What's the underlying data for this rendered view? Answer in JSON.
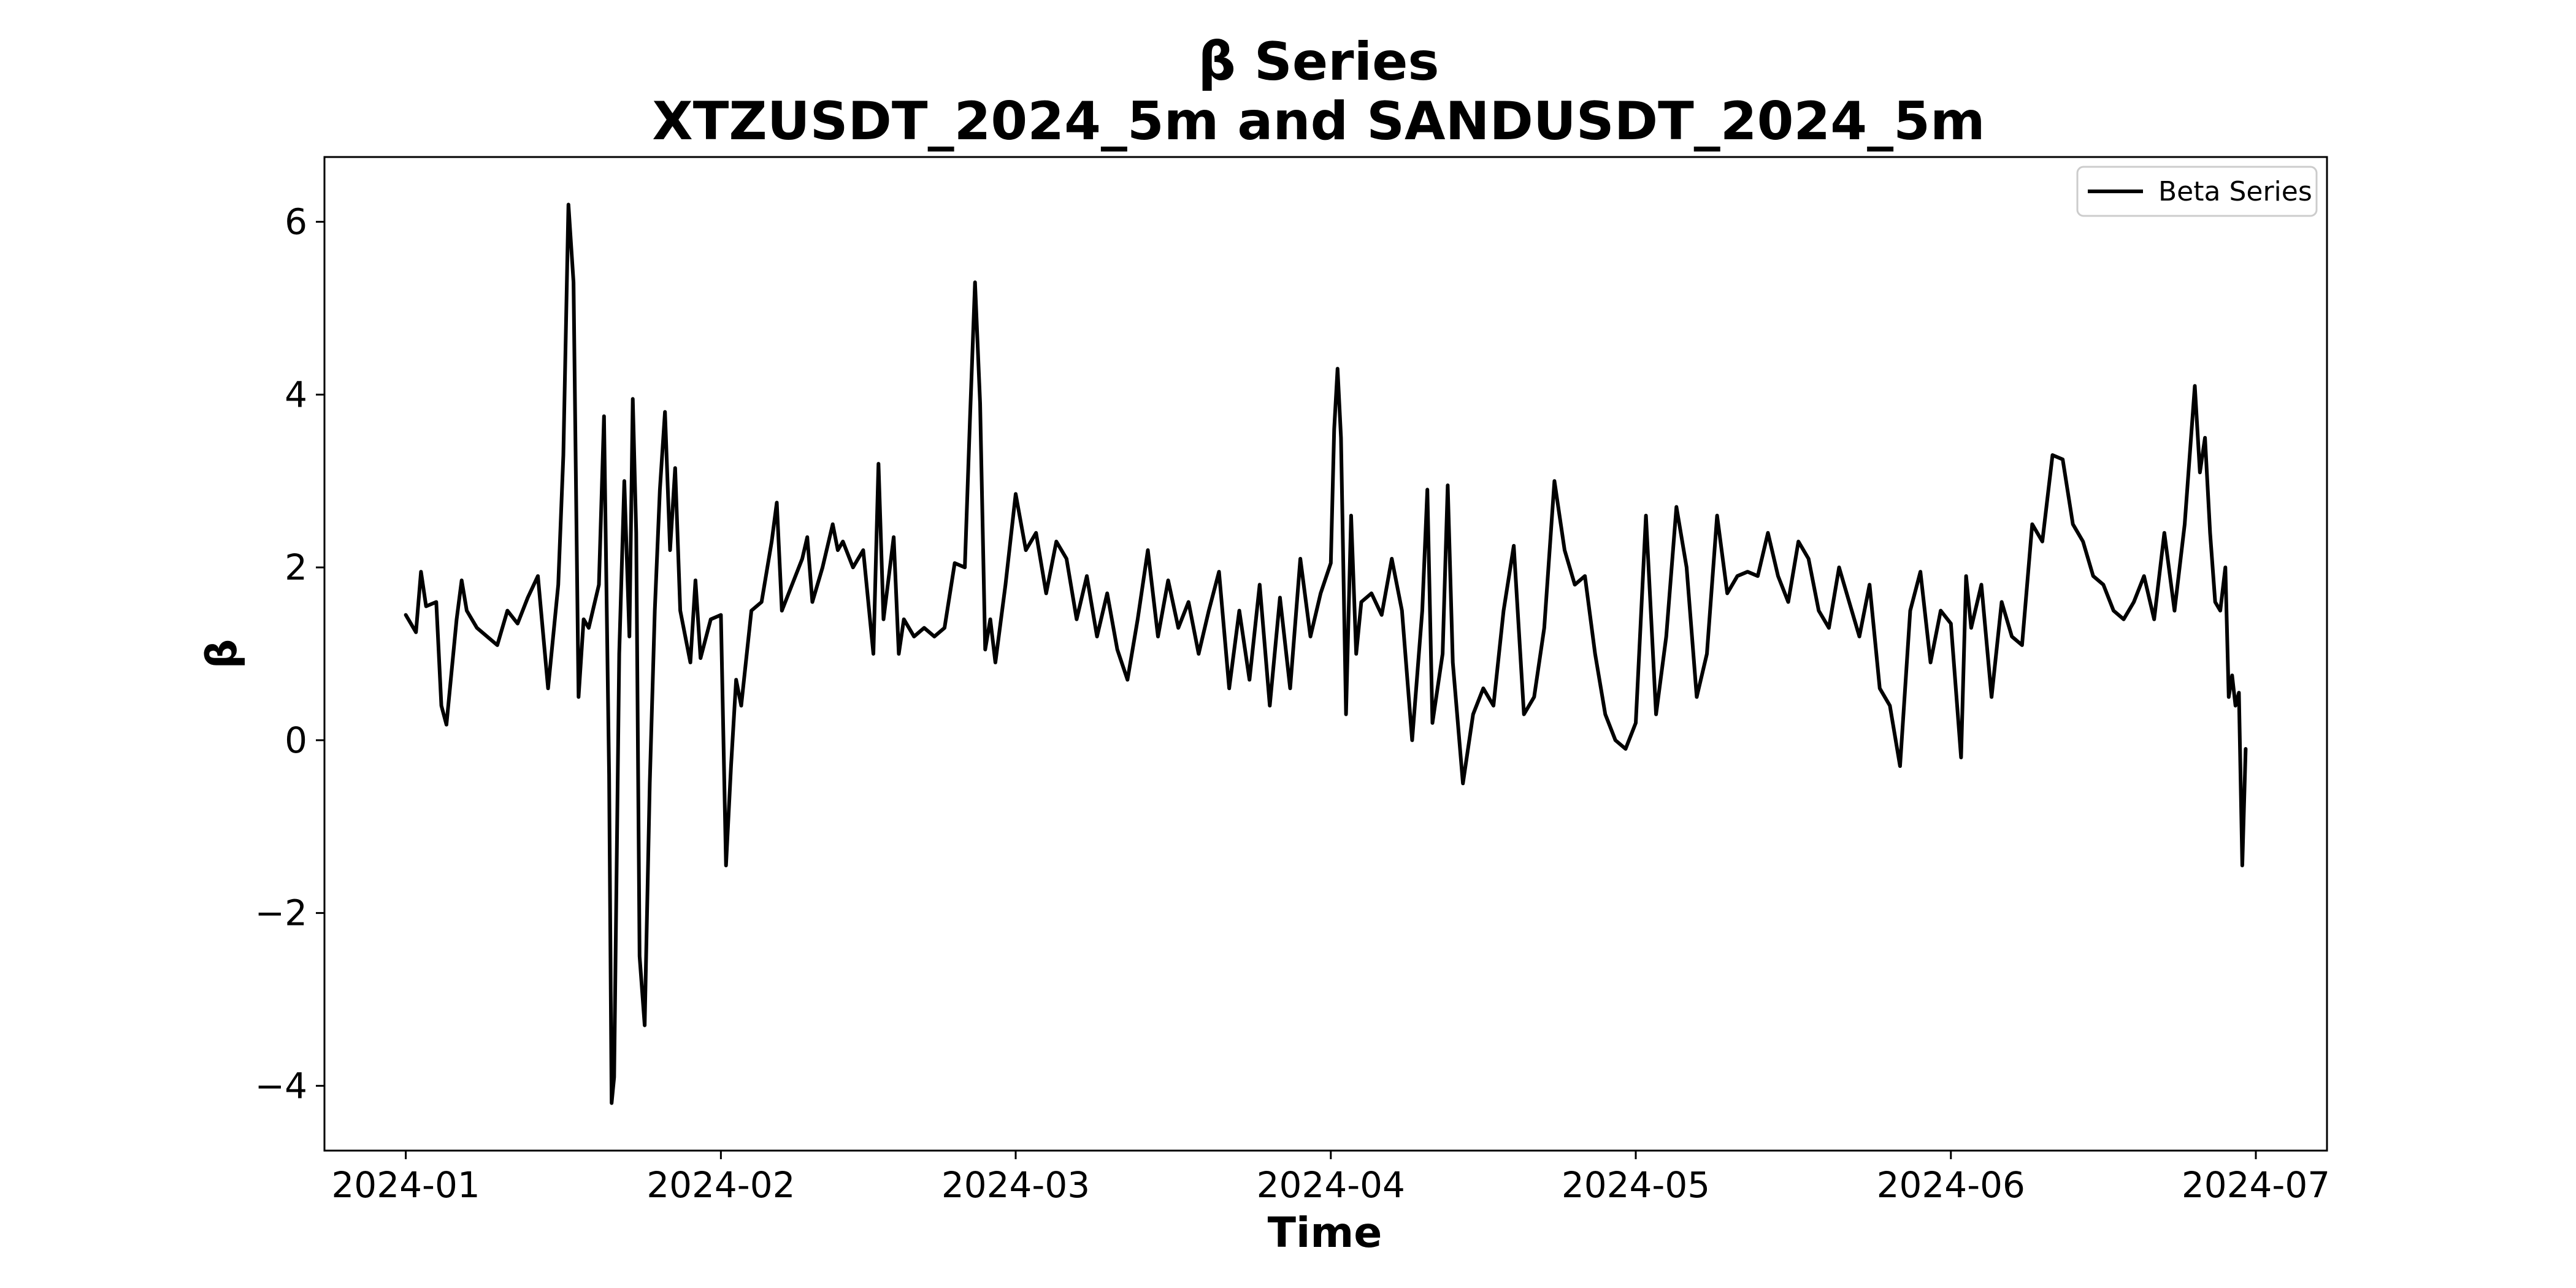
{
  "chart_data": {
    "type": "line",
    "title": "β Series",
    "subtitle": "XTZUSDT_2024_5m and SANDUSDT_2024_5m",
    "xlabel": "Time",
    "ylabel": "β",
    "xlim": [
      "2023-12-24",
      "2024-07-08"
    ],
    "ylim": [
      -4.75,
      6.75
    ],
    "x_ticks": [
      "2024-01",
      "2024-02",
      "2024-03",
      "2024-04",
      "2024-05",
      "2024-06",
      "2024-07"
    ],
    "y_ticks": [
      -4,
      -2,
      0,
      2,
      4,
      6
    ],
    "y_tick_labels": [
      "−4",
      "−2",
      "0",
      "2",
      "4",
      "6"
    ],
    "grid": false,
    "legend_position": "upper right",
    "series": [
      {
        "name": "Beta Series",
        "color": "#000000",
        "points": [
          [
            "2024-01-01",
            1.45
          ],
          [
            "2024-01-02",
            1.25
          ],
          [
            "2024-01-02T12",
            1.95
          ],
          [
            "2024-01-03",
            1.55
          ],
          [
            "2024-01-04",
            1.6
          ],
          [
            "2024-01-04T12",
            0.4
          ],
          [
            "2024-01-05",
            0.18
          ],
          [
            "2024-01-06",
            1.4
          ],
          [
            "2024-01-06T12",
            1.85
          ],
          [
            "2024-01-07",
            1.5
          ],
          [
            "2024-01-08",
            1.3
          ],
          [
            "2024-01-09",
            1.2
          ],
          [
            "2024-01-10",
            1.1
          ],
          [
            "2024-01-11",
            1.5
          ],
          [
            "2024-01-12",
            1.35
          ],
          [
            "2024-01-13",
            1.65
          ],
          [
            "2024-01-14",
            1.9
          ],
          [
            "2024-01-15",
            0.6
          ],
          [
            "2024-01-16",
            1.8
          ],
          [
            "2024-01-16T12",
            3.3
          ],
          [
            "2024-01-17",
            6.2
          ],
          [
            "2024-01-17T12",
            5.3
          ],
          [
            "2024-01-18",
            0.5
          ],
          [
            "2024-01-18T12",
            1.4
          ],
          [
            "2024-01-19",
            1.3
          ],
          [
            "2024-01-20",
            1.8
          ],
          [
            "2024-01-20T12",
            3.75
          ],
          [
            "2024-01-21",
            -0.4
          ],
          [
            "2024-01-21T06",
            -4.2
          ],
          [
            "2024-01-21T12",
            -3.9
          ],
          [
            "2024-01-22",
            1.0
          ],
          [
            "2024-01-22T12",
            3.0
          ],
          [
            "2024-01-23",
            1.2
          ],
          [
            "2024-01-23T08",
            3.95
          ],
          [
            "2024-01-23T16",
            2.4
          ],
          [
            "2024-01-24",
            -2.5
          ],
          [
            "2024-01-24T12",
            -3.3
          ],
          [
            "2024-01-25",
            -0.5
          ],
          [
            "2024-01-25T12",
            1.5
          ],
          [
            "2024-01-26",
            2.9
          ],
          [
            "2024-01-26T12",
            3.8
          ],
          [
            "2024-01-27",
            2.2
          ],
          [
            "2024-01-27T12",
            3.15
          ],
          [
            "2024-01-28",
            1.5
          ],
          [
            "2024-01-29",
            0.9
          ],
          [
            "2024-01-29T12",
            1.85
          ],
          [
            "2024-01-30",
            0.95
          ],
          [
            "2024-01-31",
            1.4
          ],
          [
            "2024-02-01",
            1.45
          ],
          [
            "2024-02-01T12",
            -1.45
          ],
          [
            "2024-02-02",
            -0.3
          ],
          [
            "2024-02-02T12",
            0.7
          ],
          [
            "2024-02-03",
            0.4
          ],
          [
            "2024-02-04",
            1.5
          ],
          [
            "2024-02-05",
            1.6
          ],
          [
            "2024-02-06",
            2.3
          ],
          [
            "2024-02-06T12",
            2.75
          ],
          [
            "2024-02-07",
            1.5
          ],
          [
            "2024-02-08",
            1.8
          ],
          [
            "2024-02-09",
            2.1
          ],
          [
            "2024-02-09T12",
            2.35
          ],
          [
            "2024-02-10",
            1.6
          ],
          [
            "2024-02-11",
            2.0
          ],
          [
            "2024-02-12",
            2.5
          ],
          [
            "2024-02-12T12",
            2.2
          ],
          [
            "2024-02-13",
            2.3
          ],
          [
            "2024-02-14",
            2.0
          ],
          [
            "2024-02-15",
            2.2
          ],
          [
            "2024-02-16",
            1.0
          ],
          [
            "2024-02-16T12",
            3.2
          ],
          [
            "2024-02-17",
            1.4
          ],
          [
            "2024-02-18",
            2.35
          ],
          [
            "2024-02-18T12",
            1.0
          ],
          [
            "2024-02-19",
            1.4
          ],
          [
            "2024-02-20",
            1.2
          ],
          [
            "2024-02-21",
            1.3
          ],
          [
            "2024-02-22",
            1.2
          ],
          [
            "2024-02-23",
            1.3
          ],
          [
            "2024-02-24",
            2.05
          ],
          [
            "2024-02-25",
            2.0
          ],
          [
            "2024-02-25T12",
            3.7
          ],
          [
            "2024-02-26",
            5.3
          ],
          [
            "2024-02-26T12",
            3.9
          ],
          [
            "2024-02-27",
            1.05
          ],
          [
            "2024-02-27T12",
            1.4
          ],
          [
            "2024-02-28",
            0.9
          ],
          [
            "2024-02-29",
            1.8
          ],
          [
            "2024-03-01",
            2.85
          ],
          [
            "2024-03-02",
            2.2
          ],
          [
            "2024-03-03",
            2.4
          ],
          [
            "2024-03-04",
            1.7
          ],
          [
            "2024-03-05",
            2.3
          ],
          [
            "2024-03-06",
            2.1
          ],
          [
            "2024-03-07",
            1.4
          ],
          [
            "2024-03-08",
            1.9
          ],
          [
            "2024-03-09",
            1.2
          ],
          [
            "2024-03-10",
            1.7
          ],
          [
            "2024-03-11",
            1.05
          ],
          [
            "2024-03-12",
            0.7
          ],
          [
            "2024-03-13",
            1.4
          ],
          [
            "2024-03-14",
            2.2
          ],
          [
            "2024-03-15",
            1.2
          ],
          [
            "2024-03-16",
            1.85
          ],
          [
            "2024-03-17",
            1.3
          ],
          [
            "2024-03-18",
            1.6
          ],
          [
            "2024-03-19",
            1.0
          ],
          [
            "2024-03-20",
            1.5
          ],
          [
            "2024-03-21",
            1.95
          ],
          [
            "2024-03-22",
            0.6
          ],
          [
            "2024-03-23",
            1.5
          ],
          [
            "2024-03-24",
            0.7
          ],
          [
            "2024-03-25",
            1.8
          ],
          [
            "2024-03-26",
            0.4
          ],
          [
            "2024-03-27",
            1.65
          ],
          [
            "2024-03-28",
            0.6
          ],
          [
            "2024-03-29",
            2.1
          ],
          [
            "2024-03-30",
            1.2
          ],
          [
            "2024-03-31",
            1.7
          ],
          [
            "2024-04-01",
            2.05
          ],
          [
            "2024-04-01T08",
            3.6
          ],
          [
            "2024-04-01T16",
            4.3
          ],
          [
            "2024-04-02",
            3.5
          ],
          [
            "2024-04-02T12",
            0.3
          ],
          [
            "2024-04-03",
            2.6
          ],
          [
            "2024-04-03T12",
            1.0
          ],
          [
            "2024-04-04",
            1.6
          ],
          [
            "2024-04-05",
            1.7
          ],
          [
            "2024-04-06",
            1.45
          ],
          [
            "2024-04-07",
            2.1
          ],
          [
            "2024-04-08",
            1.5
          ],
          [
            "2024-04-09",
            0.0
          ],
          [
            "2024-04-10",
            1.5
          ],
          [
            "2024-04-10T12",
            2.9
          ],
          [
            "2024-04-11",
            0.2
          ],
          [
            "2024-04-12",
            1.0
          ],
          [
            "2024-04-12T12",
            2.95
          ],
          [
            "2024-04-13",
            0.9
          ],
          [
            "2024-04-14",
            -0.5
          ],
          [
            "2024-04-15",
            0.3
          ],
          [
            "2024-04-16",
            0.6
          ],
          [
            "2024-04-17",
            0.4
          ],
          [
            "2024-04-18",
            1.5
          ],
          [
            "2024-04-19",
            2.25
          ],
          [
            "2024-04-20",
            0.3
          ],
          [
            "2024-04-21",
            0.5
          ],
          [
            "2024-04-22",
            1.3
          ],
          [
            "2024-04-23",
            3.0
          ],
          [
            "2024-04-24",
            2.2
          ],
          [
            "2024-04-25",
            1.8
          ],
          [
            "2024-04-26",
            1.9
          ],
          [
            "2024-04-27",
            1.0
          ],
          [
            "2024-04-28",
            0.3
          ],
          [
            "2024-04-29",
            0.0
          ],
          [
            "2024-04-30",
            -0.1
          ],
          [
            "2024-05-01",
            0.2
          ],
          [
            "2024-05-02",
            2.6
          ],
          [
            "2024-05-03",
            0.3
          ],
          [
            "2024-05-04",
            1.2
          ],
          [
            "2024-05-05",
            2.7
          ],
          [
            "2024-05-06",
            2.0
          ],
          [
            "2024-05-07",
            0.5
          ],
          [
            "2024-05-08",
            1.0
          ],
          [
            "2024-05-09",
            2.6
          ],
          [
            "2024-05-10",
            1.7
          ],
          [
            "2024-05-11",
            1.9
          ],
          [
            "2024-05-12",
            1.95
          ],
          [
            "2024-05-13",
            1.9
          ],
          [
            "2024-05-14",
            2.4
          ],
          [
            "2024-05-15",
            1.9
          ],
          [
            "2024-05-16",
            1.6
          ],
          [
            "2024-05-17",
            2.3
          ],
          [
            "2024-05-18",
            2.1
          ],
          [
            "2024-05-19",
            1.5
          ],
          [
            "2024-05-20",
            1.3
          ],
          [
            "2024-05-21",
            2.0
          ],
          [
            "2024-05-22",
            1.6
          ],
          [
            "2024-05-23",
            1.2
          ],
          [
            "2024-05-24",
            1.8
          ],
          [
            "2024-05-25",
            0.6
          ],
          [
            "2024-05-26",
            0.4
          ],
          [
            "2024-05-27",
            -0.3
          ],
          [
            "2024-05-28",
            1.5
          ],
          [
            "2024-05-29",
            1.95
          ],
          [
            "2024-05-30",
            0.9
          ],
          [
            "2024-05-31",
            1.5
          ],
          [
            "2024-06-01",
            1.35
          ],
          [
            "2024-06-02",
            -0.2
          ],
          [
            "2024-06-02T12",
            1.9
          ],
          [
            "2024-06-03",
            1.3
          ],
          [
            "2024-06-04",
            1.8
          ],
          [
            "2024-06-05",
            0.5
          ],
          [
            "2024-06-06",
            1.6
          ],
          [
            "2024-06-07",
            1.2
          ],
          [
            "2024-06-08",
            1.1
          ],
          [
            "2024-06-09",
            2.5
          ],
          [
            "2024-06-10",
            2.3
          ],
          [
            "2024-06-11",
            3.3
          ],
          [
            "2024-06-12",
            3.25
          ],
          [
            "2024-06-13",
            2.5
          ],
          [
            "2024-06-14",
            2.3
          ],
          [
            "2024-06-15",
            1.9
          ],
          [
            "2024-06-16",
            1.8
          ],
          [
            "2024-06-17",
            1.5
          ],
          [
            "2024-06-18",
            1.4
          ],
          [
            "2024-06-19",
            1.6
          ],
          [
            "2024-06-20",
            1.9
          ],
          [
            "2024-06-21",
            1.4
          ],
          [
            "2024-06-22",
            2.4
          ],
          [
            "2024-06-23",
            1.5
          ],
          [
            "2024-06-24",
            2.5
          ],
          [
            "2024-06-25",
            4.1
          ],
          [
            "2024-06-25T12",
            3.1
          ],
          [
            "2024-06-26",
            3.5
          ],
          [
            "2024-06-26T12",
            2.4
          ],
          [
            "2024-06-27",
            1.6
          ],
          [
            "2024-06-27T12",
            1.5
          ],
          [
            "2024-06-28",
            2.0
          ],
          [
            "2024-06-28T08",
            0.5
          ],
          [
            "2024-06-28T16",
            0.75
          ],
          [
            "2024-06-29",
            0.4
          ],
          [
            "2024-06-29T08",
            0.55
          ],
          [
            "2024-06-29T16",
            -1.45
          ],
          [
            "2024-06-30",
            -0.1
          ]
        ]
      }
    ]
  }
}
